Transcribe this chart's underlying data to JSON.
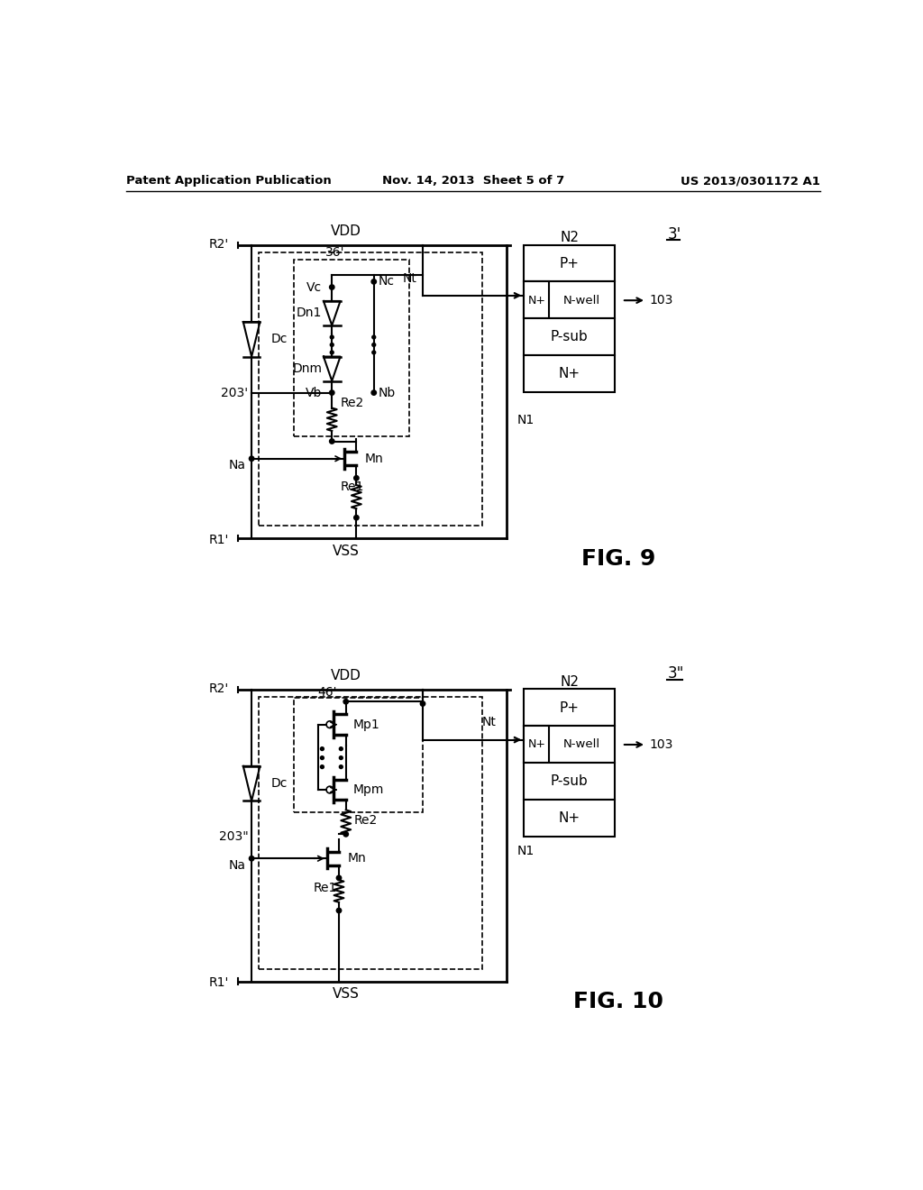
{
  "header_left": "Patent Application Publication",
  "header_mid": "Nov. 14, 2013  Sheet 5 of 7",
  "header_right": "US 2013/0301172 A1",
  "fig9_label": "FIG. 9",
  "fig10_label": "FIG. 10",
  "bg_color": "#ffffff",
  "fig9_ref": "3'",
  "fig10_ref": "3\""
}
